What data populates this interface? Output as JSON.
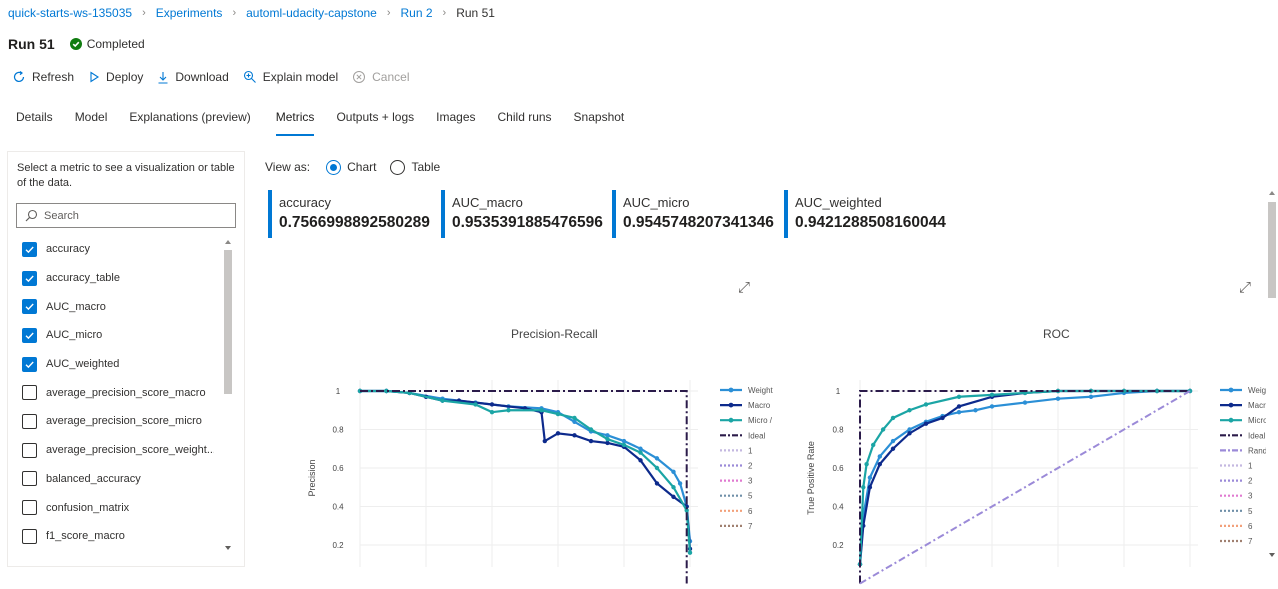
{
  "breadcrumb": [
    "quick-starts-ws-135035",
    "Experiments",
    "automl-udacity-capstone",
    "Run 2",
    "Run 51"
  ],
  "run": {
    "title": "Run 51",
    "status": "Completed"
  },
  "toolbar": {
    "refresh": "Refresh",
    "deploy": "Deploy",
    "download": "Download",
    "explain": "Explain model",
    "cancel": "Cancel"
  },
  "tabs": [
    "Details",
    "Model",
    "Explanations (preview)",
    "Metrics",
    "Outputs + logs",
    "Images",
    "Child runs",
    "Snapshot"
  ],
  "active_tab": "Metrics",
  "sidebar": {
    "hint": "Select a metric to see a visualization or table of the data.",
    "search_placeholder": "Search",
    "metrics": [
      {
        "label": "accuracy",
        "checked": true
      },
      {
        "label": "accuracy_table",
        "checked": true
      },
      {
        "label": "AUC_macro",
        "checked": true
      },
      {
        "label": "AUC_micro",
        "checked": true
      },
      {
        "label": "AUC_weighted",
        "checked": true
      },
      {
        "label": "average_precision_score_macro",
        "checked": false
      },
      {
        "label": "average_precision_score_micro",
        "checked": false
      },
      {
        "label": "average_precision_score_weight...",
        "checked": false
      },
      {
        "label": "balanced_accuracy",
        "checked": false
      },
      {
        "label": "confusion_matrix",
        "checked": false
      },
      {
        "label": "f1_score_macro",
        "checked": false
      }
    ]
  },
  "view_as": {
    "label": "View as:",
    "options": [
      "Chart",
      "Table"
    ],
    "selected": "Chart"
  },
  "metric_cards": [
    {
      "label": "accuracy",
      "value": "0.7566998892580289"
    },
    {
      "label": "AUC_macro",
      "value": "0.9535391885476596"
    },
    {
      "label": "AUC_micro",
      "value": "0.9545748207341346"
    },
    {
      "label": "AUC_weighted",
      "value": "0.9421288508160044"
    }
  ],
  "colors": {
    "accent": "#0078d4",
    "success": "#107c10",
    "weighted": "#2b8fd6",
    "macro": "#0d2a8c",
    "micro": "#1ba5a5",
    "ideal": "#2b1b4a",
    "random": "#9b8ad8"
  },
  "chart_data": [
    {
      "type": "line",
      "title": "Precision-Recall",
      "xlabel": "",
      "ylabel": "Precision",
      "yticks": [
        "1",
        "0.8",
        "0.6",
        "0.4",
        "0.2"
      ],
      "ylim": [
        0.1,
        1.05
      ],
      "xlim": [
        0,
        1
      ],
      "legend": [
        "Weight",
        "Macro",
        "Micro /",
        "Ideal",
        "1",
        "2",
        "3",
        "5",
        "6",
        "7"
      ],
      "legend_position": "right",
      "series": [
        {
          "name": "Weight",
          "x": [
            0,
            0.08,
            0.15,
            0.25,
            0.35,
            0.45,
            0.55,
            0.6,
            0.65,
            0.7,
            0.75,
            0.8,
            0.85,
            0.9,
            0.95,
            0.97,
            0.99,
            1.0
          ],
          "y": [
            1,
            1,
            0.99,
            0.96,
            0.94,
            0.92,
            0.91,
            0.89,
            0.84,
            0.79,
            0.77,
            0.74,
            0.7,
            0.65,
            0.58,
            0.52,
            0.4,
            0.22
          ]
        },
        {
          "name": "Macro",
          "x": [
            0,
            0.08,
            0.15,
            0.2,
            0.25,
            0.3,
            0.4,
            0.5,
            0.55,
            0.56,
            0.6,
            0.65,
            0.7,
            0.75,
            0.8,
            0.85,
            0.9,
            0.95,
            0.99,
            1.0
          ],
          "y": [
            1,
            1,
            0.99,
            0.97,
            0.95,
            0.95,
            0.93,
            0.91,
            0.89,
            0.74,
            0.78,
            0.77,
            0.74,
            0.73,
            0.71,
            0.64,
            0.52,
            0.45,
            0.4,
            0.18
          ]
        },
        {
          "name": "Micro /",
          "x": [
            0,
            0.08,
            0.15,
            0.25,
            0.35,
            0.4,
            0.45,
            0.55,
            0.6,
            0.65,
            0.7,
            0.75,
            0.8,
            0.85,
            0.9,
            0.95,
            0.99,
            1.0
          ],
          "y": [
            1,
            1,
            0.99,
            0.95,
            0.93,
            0.89,
            0.9,
            0.9,
            0.88,
            0.86,
            0.8,
            0.75,
            0.72,
            0.68,
            0.6,
            0.5,
            0.38,
            0.16
          ]
        },
        {
          "name": "Ideal",
          "x": [
            0,
            0.99,
            0.99
          ],
          "y": [
            1,
            1,
            0.0
          ]
        }
      ]
    },
    {
      "type": "line",
      "title": "ROC",
      "xlabel": "",
      "ylabel": "True Positive Rate",
      "yticks": [
        "1",
        "0.8",
        "0.6",
        "0.4",
        "0.2"
      ],
      "ylim": [
        0.1,
        1.05
      ],
      "xlim": [
        0,
        1
      ],
      "legend": [
        "Weigl",
        "Macri",
        "Micro",
        "Ideal",
        "Rand",
        "1",
        "2",
        "3",
        "5",
        "6",
        "7"
      ],
      "legend_position": "right",
      "series": [
        {
          "name": "Weigl",
          "x": [
            0,
            0.01,
            0.03,
            0.06,
            0.1,
            0.15,
            0.2,
            0.25,
            0.3,
            0.35,
            0.4,
            0.5,
            0.6,
            0.7,
            0.8,
            0.9,
            1.0
          ],
          "y": [
            0.1,
            0.35,
            0.55,
            0.66,
            0.74,
            0.8,
            0.84,
            0.87,
            0.89,
            0.9,
            0.92,
            0.94,
            0.96,
            0.97,
            0.99,
            1,
            1
          ]
        },
        {
          "name": "Macri",
          "x": [
            0,
            0.01,
            0.03,
            0.06,
            0.1,
            0.15,
            0.2,
            0.25,
            0.3,
            0.4,
            0.5,
            0.6,
            0.7,
            0.8,
            0.9,
            1.0
          ],
          "y": [
            0.1,
            0.3,
            0.5,
            0.62,
            0.7,
            0.78,
            0.83,
            0.86,
            0.92,
            0.97,
            0.99,
            1,
            1,
            1,
            1,
            1
          ]
        },
        {
          "name": "Micro",
          "x": [
            0,
            0.01,
            0.02,
            0.04,
            0.07,
            0.1,
            0.15,
            0.2,
            0.3,
            0.4,
            0.5,
            0.6,
            0.7,
            0.8,
            0.9,
            1.0
          ],
          "y": [
            0.1,
            0.5,
            0.62,
            0.72,
            0.8,
            0.86,
            0.9,
            0.93,
            0.97,
            0.98,
            0.99,
            1,
            1,
            1,
            1,
            1
          ]
        },
        {
          "name": "Ideal",
          "x": [
            0,
            0,
            1
          ],
          "y": [
            0,
            1,
            1
          ]
        },
        {
          "name": "Rand",
          "x": [
            0,
            1
          ],
          "y": [
            0,
            1
          ]
        }
      ]
    }
  ]
}
